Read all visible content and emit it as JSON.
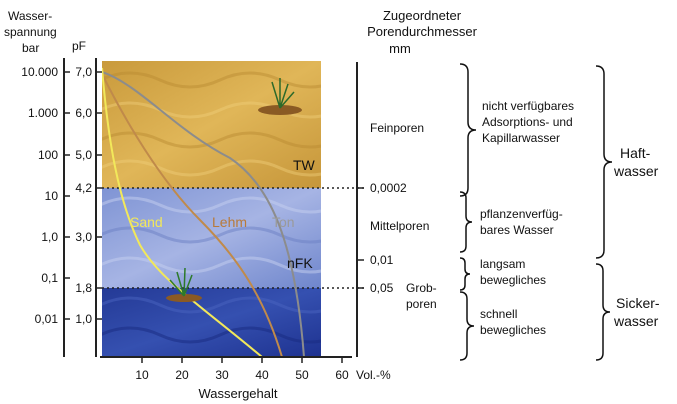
{
  "left_axis": {
    "title_line1": "Wasser-",
    "title_line2": "spannung",
    "unit": "bar",
    "pf_label": "pF",
    "bar_ticks": [
      "10.000",
      "1.000",
      "100",
      "10",
      "1,0",
      "0,1",
      "0,01"
    ],
    "pf_ticks": [
      "7,0",
      "6,0",
      "5,0",
      "4,2",
      "3,0",
      "1,8",
      "1,0"
    ]
  },
  "right_axis": {
    "title_line1": "Zugeordneter",
    "title_line2": "Porendurchmesser",
    "unit": "mm",
    "ticks": [
      "0,0002",
      "0,01",
      "0,05"
    ]
  },
  "x_axis": {
    "ticks": [
      "10",
      "20",
      "30",
      "40",
      "50",
      "60"
    ],
    "unit": "Vol.-%",
    "label": "Wassergehalt"
  },
  "zones": {
    "tw": "TW",
    "nfk": "nFK"
  },
  "curves": {
    "sand": "Sand",
    "lehm": "Lehm",
    "ton": "Ton"
  },
  "pores": {
    "fein": "Feinporen",
    "mittel": "Mittelporen",
    "grob_line1": "Grob-",
    "grob_line2": "poren"
  },
  "water_types": {
    "adsorption_line1": "nicht verfügbares",
    "adsorption_line2": "Adsorptions- und",
    "adsorption_line3": "Kapillarwasser",
    "plant_line1": "pflanzenverfüg-",
    "plant_line2": "bares Wasser",
    "slow_line1": "langsam",
    "slow_line2": "bewegliches",
    "fast_line1": "schnell",
    "fast_line2": "bewegliches"
  },
  "groups": {
    "haft_line1": "Haft-",
    "haft_line2": "wasser",
    "sicker_line1": "Sicker-",
    "sicker_line2": "wasser"
  },
  "colors": {
    "tw_zone": "#d4a23f",
    "nfk_zone": "#8a9ed8",
    "grob_zone": "#2a3f9c",
    "sand_curve": "#f2e85a",
    "lehm_curve": "#c08a4a",
    "ton_curve": "#8c8c8c"
  }
}
